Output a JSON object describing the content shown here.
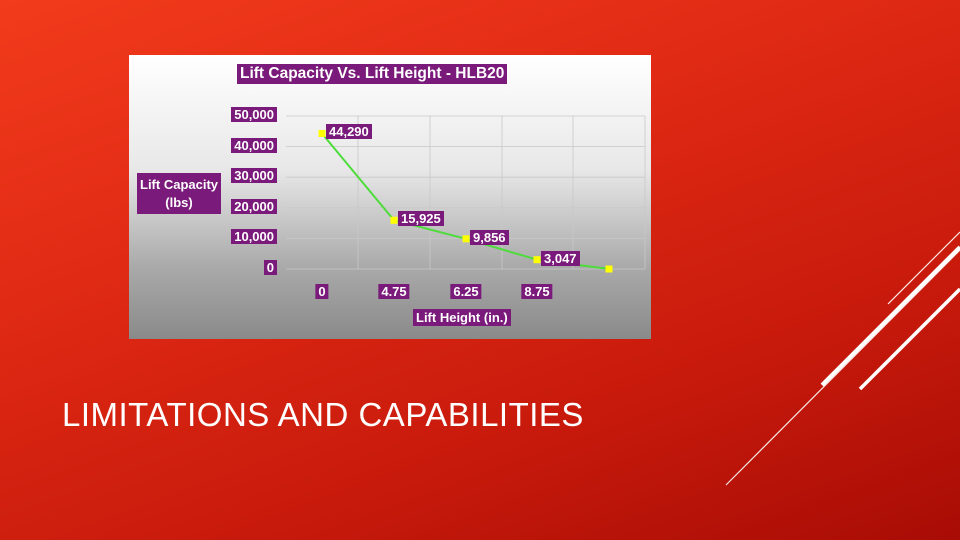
{
  "slide": {
    "title": "LIMITATIONS AND CAPABILITIES"
  },
  "colors": {
    "background": "#e02a14",
    "label_fill": "#7a1a7a",
    "line": "#4ddc3a",
    "marker": "#ffff00"
  },
  "chart_data": {
    "type": "line",
    "title": "Lift Capacity Vs. Lift Height - HLB20",
    "xlabel": "Lift Height (in.)",
    "ylabel": "Lift Capacity (lbs)",
    "ylabel_lines": [
      "Lift Capacity",
      "(lbs)"
    ],
    "x_tick_labels": [
      "0",
      "4.75",
      "6.25",
      "8.75"
    ],
    "y_tick_labels": [
      "50,000",
      "40,000",
      "30,000",
      "20,000",
      "10,000",
      "0"
    ],
    "ylim": [
      0,
      50000
    ],
    "grid": true,
    "series": [
      {
        "points": [
          {
            "x": "0",
            "y": 44290,
            "label": "44,290"
          },
          {
            "x": "4.75",
            "y": 15925,
            "label": "15,925"
          },
          {
            "x": "6.25",
            "y": 9856,
            "label": "9,856"
          },
          {
            "x": "8.75",
            "y": 3047,
            "label": "3,047"
          },
          {
            "x": "",
            "y": 0,
            "label": ""
          }
        ]
      }
    ]
  }
}
